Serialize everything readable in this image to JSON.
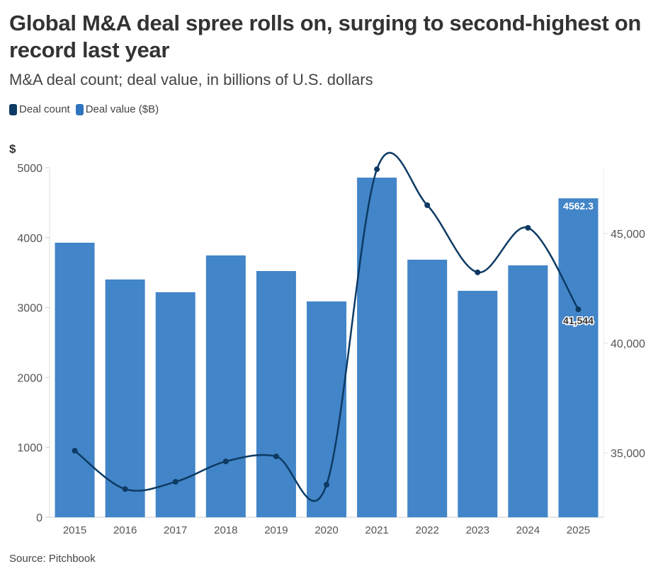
{
  "title": "Global M&A deal spree rolls on, surging to second-highest on record last year",
  "subtitle": "M&A deal count; deal value, in billions of U.S. dollars",
  "source": "Source: Pitchbook",
  "chart_data": {
    "type": "bar+line",
    "categories": [
      "2015",
      "2016",
      "2017",
      "2018",
      "2019",
      "2020",
      "2021",
      "2022",
      "2023",
      "2024",
      "2025"
    ],
    "series": [
      {
        "name": "Deal count",
        "type": "line",
        "axis": "right",
        "color": "#0d3a63",
        "values": [
          35100,
          33350,
          33680,
          34610,
          34840,
          33550,
          47930,
          46290,
          43230,
          45260,
          41544
        ]
      },
      {
        "name": "Deal value ($B)",
        "type": "bar",
        "axis": "left",
        "color": "#4285c8",
        "values": [
          3927,
          3401,
          3219,
          3745,
          3522,
          3087,
          4858,
          3684,
          3239,
          3603,
          4562.3
        ]
      }
    ],
    "left_axis": {
      "label": "$",
      "ylim": [
        0,
        5000
      ],
      "ticks": [
        "0",
        "1000",
        "2000",
        "3000",
        "4000",
        "5000"
      ]
    },
    "right_axis": {
      "ylim": [
        32200,
        48100
      ],
      "ticks": [
        {
          "v": 35000,
          "label": "35,000"
        },
        {
          "v": 40000,
          "label": "40,000"
        },
        {
          "v": 45000,
          "label": "45,000"
        }
      ]
    },
    "data_labels": {
      "bar_2025": "4562.3",
      "line_2025": "41,544"
    },
    "grid": false,
    "legend": "top-left"
  }
}
